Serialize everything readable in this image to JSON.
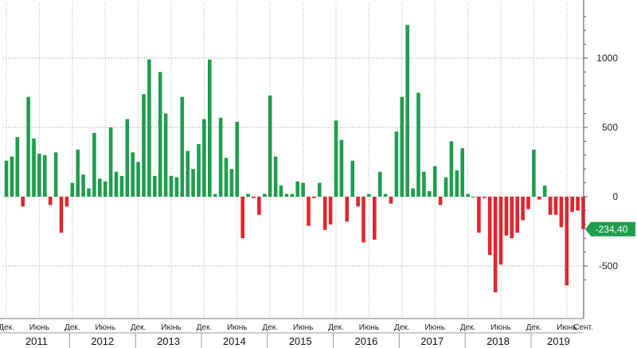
{
  "chart_data": {
    "type": "bar",
    "colors": {
      "positive": "#1e9e4d",
      "negative": "#e0262d",
      "last_badge": "#1e9e4d"
    },
    "grid": true,
    "y_ticks": [
      {
        "value": 1000,
        "label": "1000"
      },
      {
        "value": 500,
        "label": "500"
      },
      {
        "value": 0,
        "label": "0"
      },
      {
        "value": -500,
        "label": "-500"
      }
    ],
    "ylim": [
      -740,
      1400
    ],
    "last_value": {
      "value": -234.4,
      "label": "-234,40"
    },
    "month_labels": [
      {
        "index": 0,
        "label": "Дек."
      },
      {
        "index": 6,
        "label": "Июнь"
      },
      {
        "index": 12,
        "label": "Дек."
      },
      {
        "index": 18,
        "label": "Июнь"
      },
      {
        "index": 24,
        "label": "Дек."
      },
      {
        "index": 30,
        "label": "Июнь"
      },
      {
        "index": 36,
        "label": "Дек."
      },
      {
        "index": 42,
        "label": "Июнь"
      },
      {
        "index": 48,
        "label": "Дек."
      },
      {
        "index": 54,
        "label": "Июнь"
      },
      {
        "index": 60,
        "label": "Дек."
      },
      {
        "index": 66,
        "label": "Июнь"
      },
      {
        "index": 72,
        "label": "Дек."
      },
      {
        "index": 78,
        "label": "Июнь"
      },
      {
        "index": 84,
        "label": "Дек."
      },
      {
        "index": 90,
        "label": "Июнь"
      },
      {
        "index": 96,
        "label": "Дек."
      },
      {
        "index": 102,
        "label": "Июнь"
      },
      {
        "index": 105,
        "label": "Сент."
      }
    ],
    "years": [
      {
        "label": "2011",
        "start": 0,
        "end": 12
      },
      {
        "label": "2012",
        "start": 12,
        "end": 24
      },
      {
        "label": "2013",
        "start": 24,
        "end": 36
      },
      {
        "label": "2014",
        "start": 36,
        "end": 48
      },
      {
        "label": "2015",
        "start": 48,
        "end": 60
      },
      {
        "label": "2016",
        "start": 60,
        "end": 72
      },
      {
        "label": "2017",
        "start": 72,
        "end": 84
      },
      {
        "label": "2018",
        "start": 84,
        "end": 96
      },
      {
        "label": "2019",
        "start": 96,
        "end": 106
      }
    ],
    "values": [
      260,
      290,
      430,
      -70,
      720,
      420,
      310,
      300,
      -60,
      320,
      -260,
      -70,
      100,
      340,
      160,
      60,
      460,
      130,
      110,
      500,
      180,
      150,
      560,
      320,
      250,
      740,
      990,
      150,
      900,
      600,
      150,
      140,
      720,
      330,
      200,
      380,
      560,
      990,
      20,
      570,
      280,
      200,
      540,
      -300,
      20,
      -10,
      -130,
      20,
      730,
      290,
      80,
      20,
      20,
      110,
      100,
      -210,
      -10,
      100,
      -240,
      -200,
      550,
      410,
      -180,
      260,
      -70,
      -330,
      20,
      -310,
      180,
      20,
      -50,
      470,
      720,
      1240,
      60,
      750,
      180,
      40,
      220,
      -60,
      140,
      400,
      190,
      350,
      20,
      0,
      -260,
      -10,
      -420,
      -690,
      -490,
      -280,
      -300,
      -260,
      -170,
      -90,
      340,
      -20,
      80,
      -130,
      -130,
      -220,
      -640,
      -110,
      -100,
      -234
    ]
  }
}
